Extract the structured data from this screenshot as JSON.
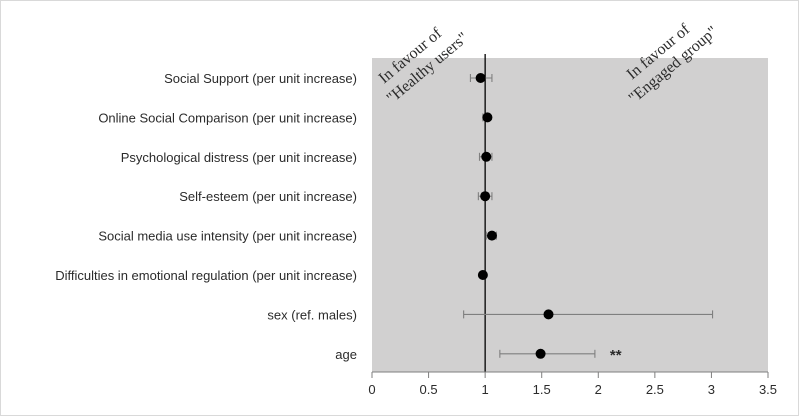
{
  "chart_data": {
    "type": "forest",
    "title": "",
    "xlabel": "",
    "ylabel": "",
    "xlim": [
      0,
      3.5
    ],
    "x_ticks": [
      "0",
      "0.5",
      "1",
      "1.5",
      "2",
      "2.5",
      "3",
      "3.5"
    ],
    "reference_line": 1,
    "grid": false,
    "colors": {
      "plot_background": "#d1d0d0",
      "point": "#000000",
      "error_bar": "#7f7f7f",
      "reference_line": "#000000"
    },
    "annotations": {
      "left": [
        "In favour of",
        "\"Healthy users\""
      ],
      "right": [
        "In favour of",
        "\"Engaged group\""
      ]
    },
    "categories": [
      "Social Support (per unit increase)",
      "Online Social Comparison (per unit increase)",
      "Psychological distress (per unit increase)",
      "Self-esteem (per unit increase)",
      "Social media use intensity (per unit increase)",
      "Difficulties in emotional regulation (per unit increase)",
      "sex (ref. males)",
      "age"
    ],
    "values": [
      0.96,
      1.02,
      1.01,
      1.0,
      1.06,
      0.98,
      1.56,
      1.49
    ],
    "ci_low": [
      0.87,
      0.98,
      0.95,
      0.94,
      1.01,
      0.96,
      0.81,
      1.13
    ],
    "ci_high": [
      1.06,
      1.04,
      1.06,
      1.06,
      1.1,
      1.0,
      3.01,
      1.97
    ],
    "significance": [
      "",
      "",
      "",
      "",
      "",
      "",
      "",
      "**"
    ]
  }
}
